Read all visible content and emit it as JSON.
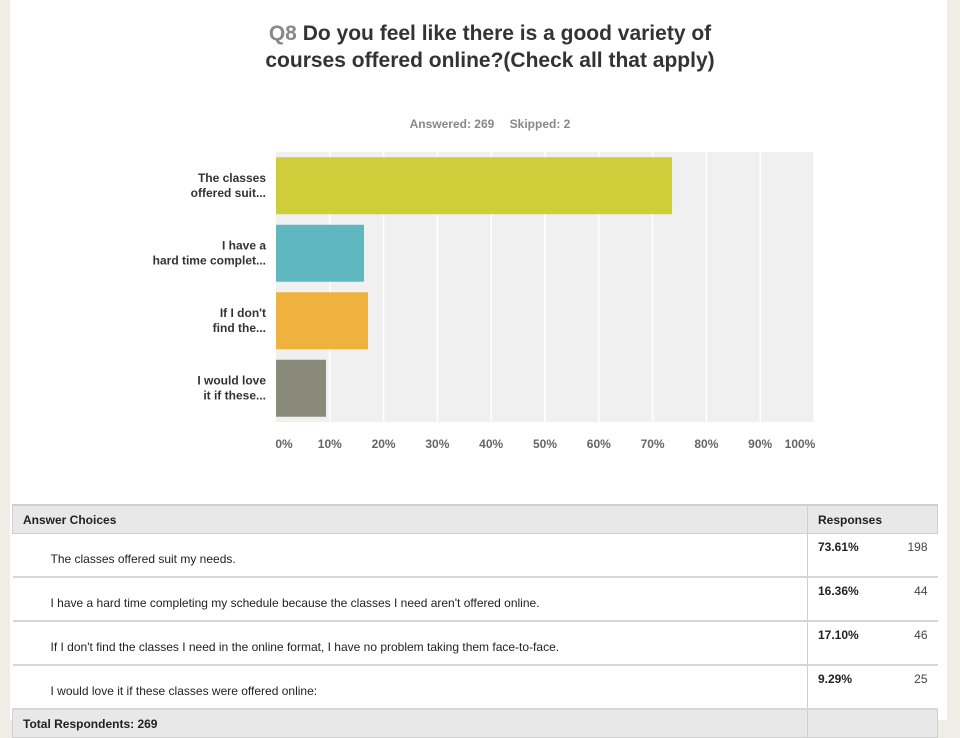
{
  "question": {
    "number": "Q8",
    "text": "Do you feel like there is a good variety of courses offered online?(Check all that apply)"
  },
  "stats": {
    "answered": "Answered: 269",
    "skipped": "Skipped: 2"
  },
  "chart_data": {
    "type": "bar",
    "orientation": "horizontal",
    "categories": [
      "The classes offered suit...",
      "I have a hard time complet...",
      "If I don't find the...",
      "I would love it if these..."
    ],
    "values": [
      73.61,
      16.36,
      17.1,
      9.29
    ],
    "colors": [
      "#cfcd3a",
      "#5fb8bf",
      "#f0b23f",
      "#8a8a7a"
    ],
    "xlim": [
      0,
      100
    ],
    "xticks": [
      "0%",
      "10%",
      "20%",
      "30%",
      "40%",
      "50%",
      "60%",
      "70%",
      "80%",
      "90%",
      "100%"
    ],
    "grid": true
  },
  "table": {
    "header_choices": "Answer Choices",
    "header_responses": "Responses",
    "rows": [
      {
        "choice": "The classes offered suit my needs.",
        "percent": "73.61%",
        "count": "198"
      },
      {
        "choice": "I have a hard time completing my schedule because the classes I need aren't offered online.",
        "percent": "16.36%",
        "count": "44"
      },
      {
        "choice": "If I don't find the classes I need in the online format, I have no problem taking them face-to-face.",
        "percent": "17.10%",
        "count": "46"
      },
      {
        "choice": "I would love it if these classes were offered online:",
        "percent": "9.29%",
        "count": "25"
      }
    ],
    "total": "Total Respondents: 269"
  }
}
